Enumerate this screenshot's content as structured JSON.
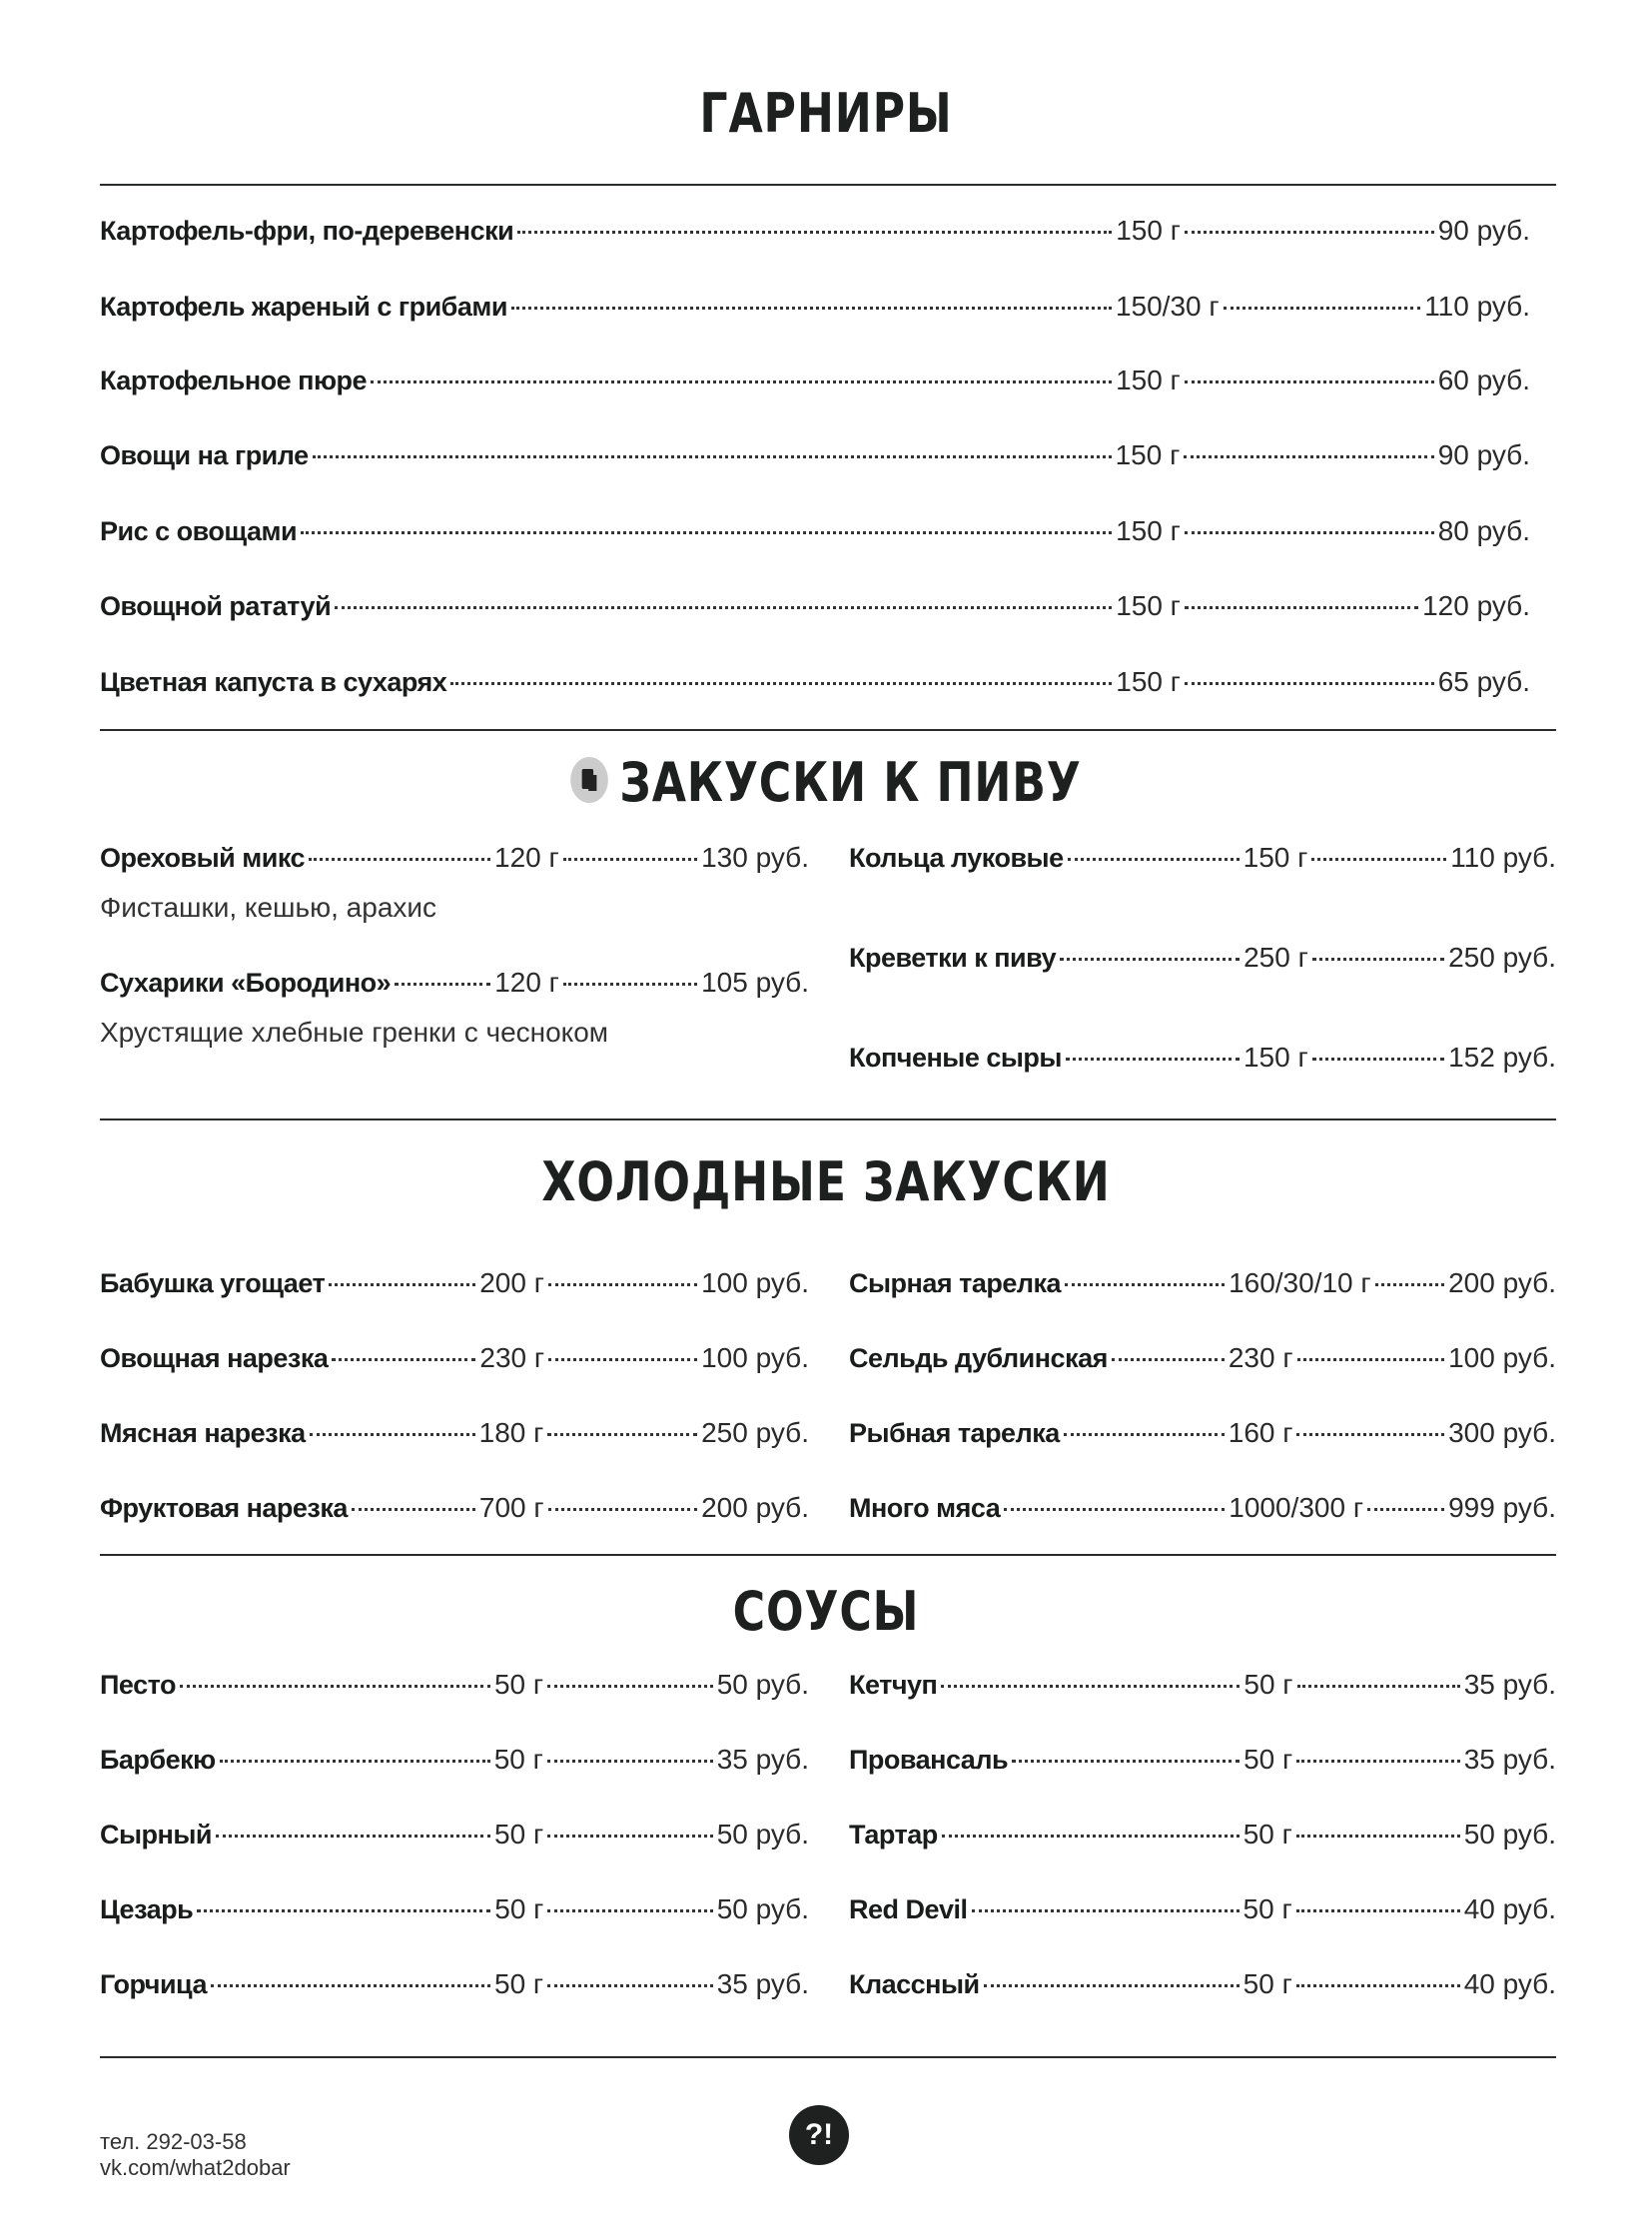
{
  "sections": {
    "garnish": {
      "title": "ГАРНИРЫ",
      "items": [
        {
          "name": "Картофель-фри, по-деревенски",
          "weight": "150 г",
          "price": "90 руб."
        },
        {
          "name": "Картофель жареный с грибами",
          "weight": "150/30 г",
          "price": "110 руб."
        },
        {
          "name": "Картофельное пюре",
          "weight": "150 г",
          "price": "60 руб."
        },
        {
          "name": "Овощи на гриле",
          "weight": "150 г",
          "price": "90 руб."
        },
        {
          "name": "Рис с овощами",
          "weight": "150 г",
          "price": "80 руб."
        },
        {
          "name": "Овощной рататуй",
          "weight": "150 г",
          "price": "120 руб."
        },
        {
          "name": "Цветная капуста в сухарях",
          "weight": "150 г",
          "price": "65 руб."
        }
      ]
    },
    "beer_snacks": {
      "title": "ЗАКУСКИ К ПИВУ",
      "icon": "beer-mug-icon",
      "left": [
        {
          "name": "Ореховый микс",
          "weight": "120 г",
          "price": "130 руб.",
          "desc": "Фисташки, кешью, арахис"
        },
        {
          "name": "Сухарики «Бородино»",
          "weight": "120 г",
          "price": "105 руб.",
          "desc": "Хрустящие хлебные гренки с чесноком"
        }
      ],
      "right": [
        {
          "name": "Кольца луковые",
          "weight": "150 г",
          "price": "110 руб."
        },
        {
          "name": "Креветки к пиву",
          "weight": "250 г",
          "price": "250 руб."
        },
        {
          "name": "Копченые сыры",
          "weight": "150 г",
          "price": "152 руб."
        }
      ]
    },
    "cold": {
      "title": "ХОЛОДНЫЕ ЗАКУСКИ",
      "left": [
        {
          "name": "Бабушка угощает",
          "weight": "200 г",
          "price": "100 руб."
        },
        {
          "name": "Овощная нарезка",
          "weight": "230 г",
          "price": "100 руб."
        },
        {
          "name": "Мясная нарезка",
          "weight": "180 г",
          "price": "250 руб."
        },
        {
          "name": "Фруктовая нарезка",
          "weight": "700 г",
          "price": "200 руб."
        }
      ],
      "right": [
        {
          "name": "Сырная тарелка",
          "weight": "160/30/10 г",
          "price": "200 руб."
        },
        {
          "name": "Сельдь дублинская",
          "weight": "230 г",
          "price": "100 руб."
        },
        {
          "name": "Рыбная тарелка",
          "weight": "160 г",
          "price": "300 руб."
        },
        {
          "name": "Много мяса",
          "weight": "1000/300 г",
          "price": "999 руб."
        }
      ]
    },
    "sauces": {
      "title": "СОУСЫ",
      "left": [
        {
          "name": "Песто",
          "weight": "50 г",
          "price": "50 руб."
        },
        {
          "name": "Барбекю",
          "weight": "50 г",
          "price": "35 руб."
        },
        {
          "name": "Сырный",
          "weight": "50 г",
          "price": "50 руб."
        },
        {
          "name": "Цезарь",
          "weight": "50 г",
          "price": "50 руб."
        },
        {
          "name": "Горчица",
          "weight": "50 г",
          "price": "35 руб."
        }
      ],
      "right": [
        {
          "name": "Кетчуп",
          "weight": "50 г",
          "price": "35 руб."
        },
        {
          "name": "Провансаль",
          "weight": "50 г",
          "price": "35 руб."
        },
        {
          "name": "Тартар",
          "weight": "50 г",
          "price": "50 руб."
        },
        {
          "name": "Red Devil",
          "weight": "50 г",
          "price": "40 руб."
        },
        {
          "name": "Классный",
          "weight": "50 г",
          "price": "40 руб."
        }
      ]
    }
  },
  "footer": {
    "phone": "тел. 292-03-58",
    "link": "vk.com/what2dobar",
    "logo": "?!"
  }
}
